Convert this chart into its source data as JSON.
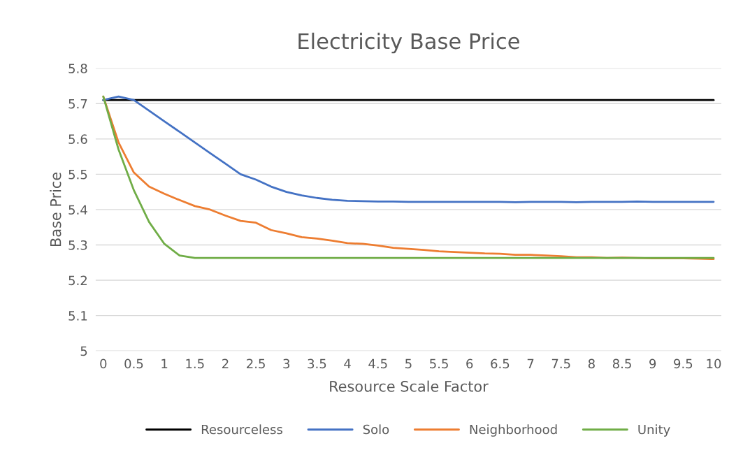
{
  "chart_data": {
    "type": "line",
    "title": "Electricity Base Price",
    "xlabel": "Resource Scale Factor",
    "ylabel": "Base Price",
    "x": [
      0,
      0.25,
      0.5,
      0.75,
      1,
      1.25,
      1.5,
      1.75,
      2,
      2.25,
      2.5,
      2.75,
      3,
      3.25,
      3.5,
      3.75,
      4,
      4.25,
      4.5,
      4.75,
      5,
      5.25,
      5.5,
      5.75,
      6,
      6.25,
      6.5,
      6.75,
      7,
      7.25,
      7.5,
      7.75,
      8,
      8.25,
      8.5,
      8.75,
      9,
      9.25,
      9.5,
      9.75,
      10
    ],
    "series": [
      {
        "name": "Resourceless",
        "color": "#000000",
        "values": [
          5.71,
          5.71,
          5.71,
          5.71,
          5.71,
          5.71,
          5.71,
          5.71,
          5.71,
          5.71,
          5.71,
          5.71,
          5.71,
          5.71,
          5.71,
          5.71,
          5.71,
          5.71,
          5.71,
          5.71,
          5.71,
          5.71,
          5.71,
          5.71,
          5.71,
          5.71,
          5.71,
          5.71,
          5.71,
          5.71,
          5.71,
          5.71,
          5.71,
          5.71,
          5.71,
          5.71,
          5.71,
          5.71,
          5.71,
          5.71,
          5.71
        ]
      },
      {
        "name": "Solo",
        "color": "#4472c4",
        "values": [
          5.71,
          5.72,
          5.71,
          5.68,
          5.65,
          5.62,
          5.59,
          5.56,
          5.53,
          5.5,
          5.485,
          5.465,
          5.45,
          5.44,
          5.433,
          5.428,
          5.425,
          5.424,
          5.423,
          5.423,
          5.422,
          5.422,
          5.422,
          5.422,
          5.422,
          5.422,
          5.422,
          5.421,
          5.422,
          5.422,
          5.422,
          5.421,
          5.422,
          5.422,
          5.422,
          5.423,
          5.422,
          5.422,
          5.422,
          5.422,
          5.422
        ]
      },
      {
        "name": "Neighborhood",
        "color": "#ed7d31",
        "values": [
          5.72,
          5.59,
          5.505,
          5.465,
          5.445,
          5.427,
          5.41,
          5.4,
          5.383,
          5.368,
          5.363,
          5.342,
          5.333,
          5.322,
          5.318,
          5.312,
          5.305,
          5.303,
          5.298,
          5.292,
          5.289,
          5.286,
          5.282,
          5.28,
          5.278,
          5.276,
          5.275,
          5.272,
          5.272,
          5.27,
          5.268,
          5.265,
          5.265,
          5.263,
          5.264,
          5.263,
          5.262,
          5.262,
          5.262,
          5.261,
          5.26
        ]
      },
      {
        "name": "Unity",
        "color": "#70ad47",
        "values": [
          5.72,
          5.57,
          5.455,
          5.365,
          5.303,
          5.27,
          5.263,
          5.263,
          5.263,
          5.263,
          5.263,
          5.263,
          5.263,
          5.263,
          5.263,
          5.263,
          5.263,
          5.263,
          5.263,
          5.263,
          5.263,
          5.263,
          5.263,
          5.263,
          5.263,
          5.263,
          5.263,
          5.263,
          5.263,
          5.263,
          5.263,
          5.263,
          5.263,
          5.263,
          5.263,
          5.263,
          5.263,
          5.263,
          5.263,
          5.263,
          5.263
        ]
      }
    ],
    "xlim": [
      -0.125,
      10.125
    ],
    "xticks": [
      0,
      0.5,
      1,
      1.5,
      2,
      2.5,
      3,
      3.5,
      4,
      4.5,
      5,
      5.5,
      6,
      6.5,
      7,
      7.5,
      8,
      8.5,
      9,
      9.5,
      10
    ],
    "ylim": [
      5,
      5.8
    ],
    "yticks": [
      5,
      5.1,
      5.2,
      5.3,
      5.4,
      5.5,
      5.6,
      5.7,
      5.8
    ],
    "grid": "y",
    "legend": "bottom",
    "marker": "none",
    "line_style": "solid"
  }
}
